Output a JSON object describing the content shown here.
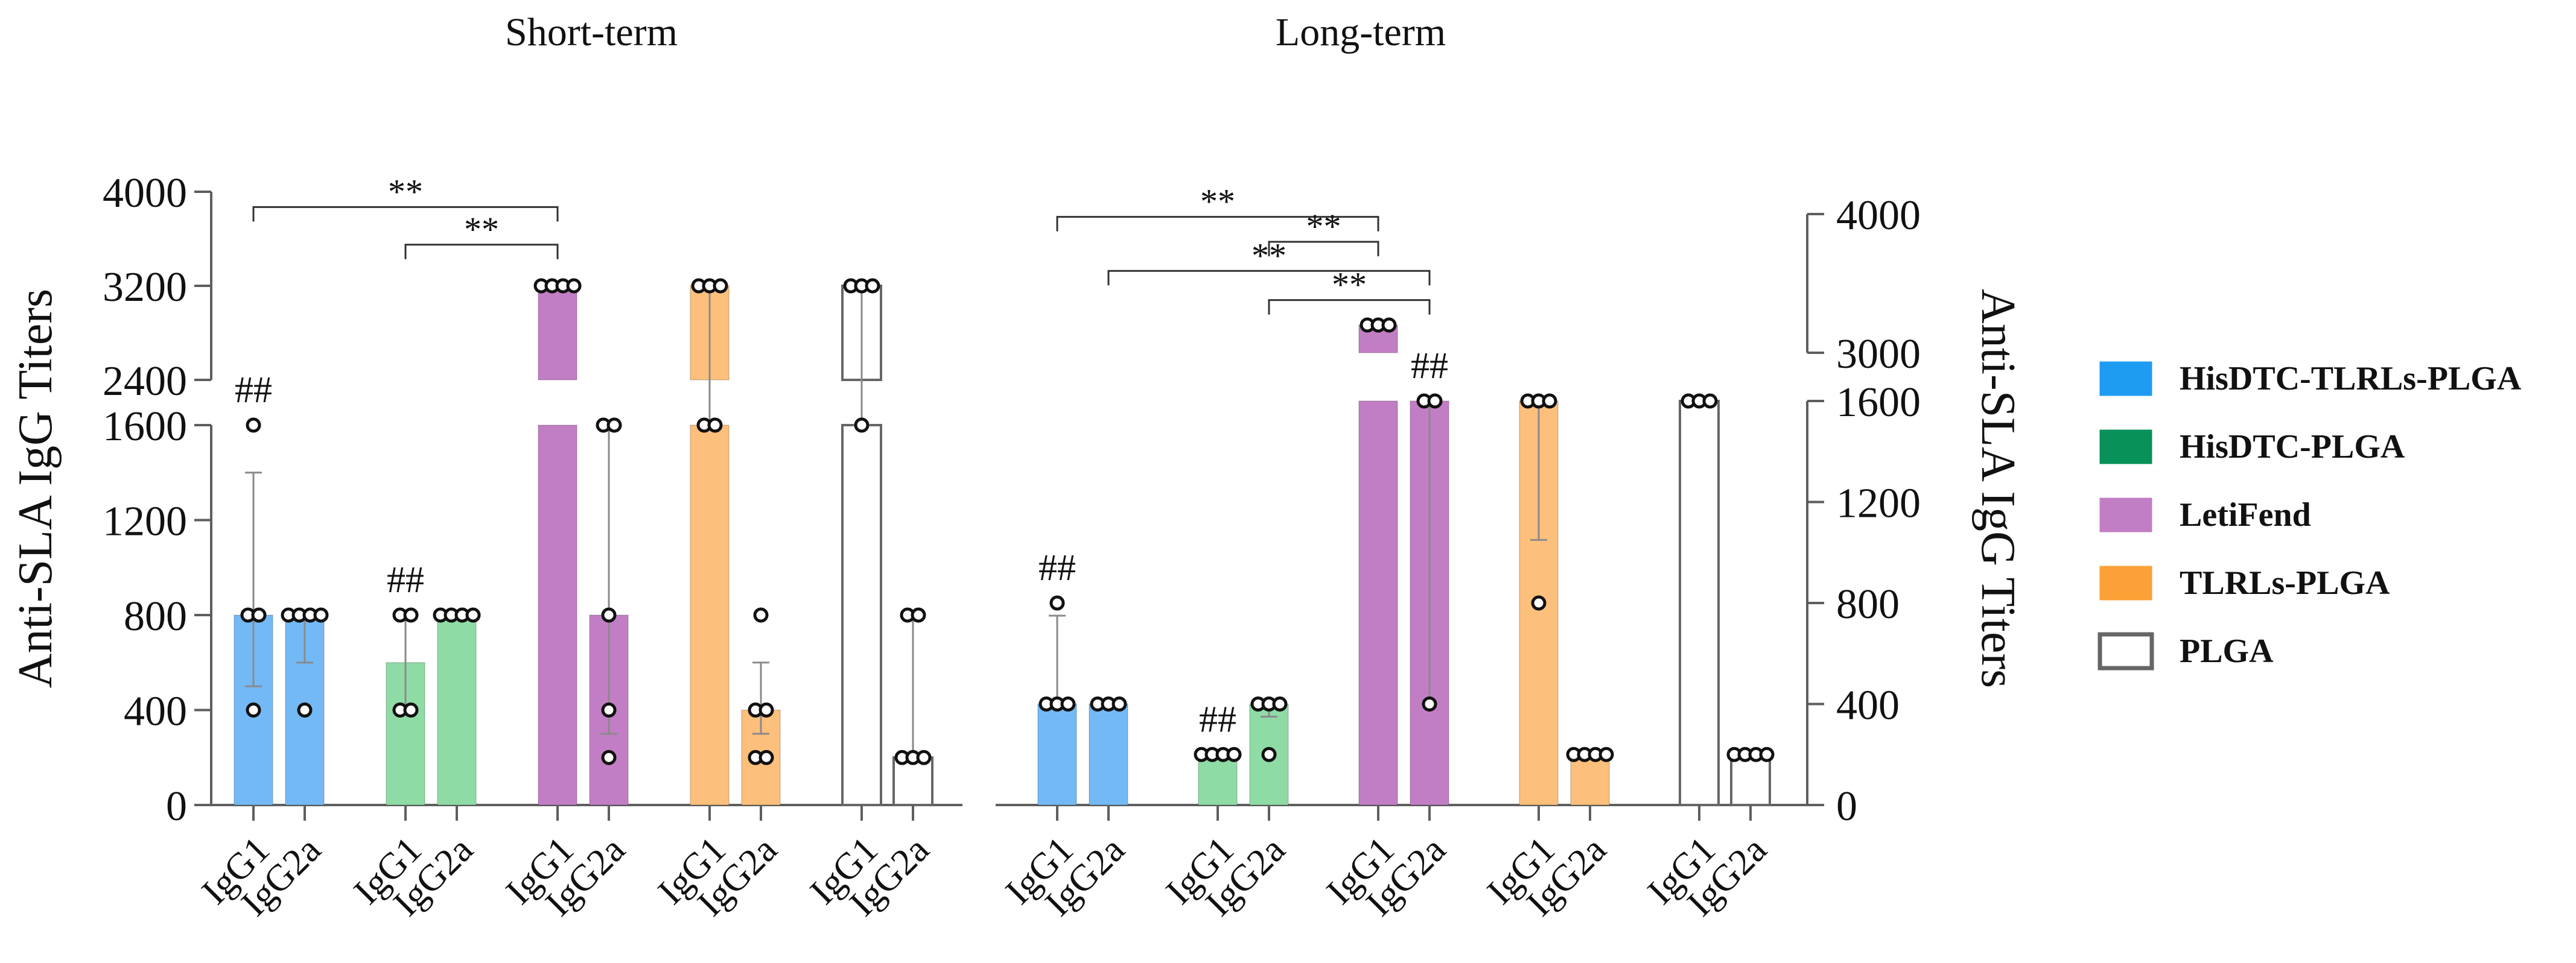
{
  "chart_data": {
    "type": "bar",
    "colors": {
      "HisDTC-TLRLs-PLGA": "#73b9f5",
      "HisDTC-PLGA": "#8fdba6",
      "LetiFend": "#c27ec4",
      "TLRLs-PLGA": "#fdbf7c",
      "PLGA": "#ffffff"
    },
    "legend": [
      {
        "label": "HisDTC-TLRLs-PLGA",
        "color": "#1e9cf2",
        "outline": false
      },
      {
        "label": "HisDTC-PLGA",
        "color": "#09915a",
        "outline": false
      },
      {
        "label": "LetiFend",
        "color": "#c27ec4",
        "outline": false
      },
      {
        "label": "TLRLs-PLGA",
        "color": "#fba137",
        "outline": false
      },
      {
        "label": "PLGA",
        "color": "#ffffff",
        "outline": true
      }
    ],
    "panels": [
      {
        "title": "Short-term",
        "ylabel": "Anti-SLA IgG Titers",
        "yaxis_side": "left",
        "yaxis_lower": {
          "range": [
            0,
            1600
          ],
          "ticks": [
            "0",
            "400",
            "800",
            "1200",
            "1600"
          ]
        },
        "yaxis_upper": {
          "range": [
            2400,
            4000
          ],
          "ticks": [
            "2400",
            "3200",
            "4000"
          ]
        },
        "bars": [
          {
            "group": "HisDTC-TLRLs-PLGA",
            "category": "IgG1",
            "value": 800,
            "err_low": 500,
            "err_high": 1400,
            "points": [
              400,
              800,
              800,
              1600
            ],
            "annotation": "##"
          },
          {
            "group": "HisDTC-TLRLs-PLGA",
            "category": "IgG2a",
            "value": 800,
            "err_low": 600,
            "err_high": 800,
            "points": [
              400,
              800,
              800,
              800,
              800
            ],
            "annotation": ""
          },
          {
            "group": "HisDTC-PLGA",
            "category": "IgG1",
            "value": 600,
            "err_low": 400,
            "err_high": 800,
            "points": [
              400,
              400,
              800,
              800
            ],
            "annotation": "##"
          },
          {
            "group": "HisDTC-PLGA",
            "category": "IgG2a",
            "value": 800,
            "err_low": 800,
            "err_high": 800,
            "points": [
              800,
              800,
              800,
              800
            ],
            "annotation": ""
          },
          {
            "group": "LetiFend",
            "category": "IgG1",
            "value": 3200,
            "err_low": 3200,
            "err_high": 3200,
            "points": [
              3200,
              3200,
              3200,
              3200
            ],
            "annotation": ""
          },
          {
            "group": "LetiFend",
            "category": "IgG2a",
            "value": 800,
            "err_low": 300,
            "err_high": 1600,
            "points": [
              200,
              400,
              800,
              1600,
              1600
            ],
            "annotation": ""
          },
          {
            "group": "TLRLs-PLGA",
            "category": "IgG1",
            "value": 3200,
            "err_low": 1600,
            "err_high": 3200,
            "points": [
              1600,
              1600,
              3200,
              3200,
              3200
            ],
            "annotation": ""
          },
          {
            "group": "TLRLs-PLGA",
            "category": "IgG2a",
            "value": 400,
            "err_low": 300,
            "err_high": 600,
            "points": [
              200,
              200,
              400,
              400,
              800
            ],
            "annotation": ""
          },
          {
            "group": "PLGA",
            "category": "IgG1",
            "value": 3200,
            "err_low": 1600,
            "err_high": 3200,
            "points": [
              1600,
              3200,
              3200,
              3200
            ],
            "annotation": ""
          },
          {
            "group": "PLGA",
            "category": "IgG2a",
            "value": 200,
            "err_low": 200,
            "err_high": 800,
            "points": [
              200,
              200,
              200,
              800,
              800
            ],
            "annotation": ""
          }
        ],
        "brackets": [
          {
            "from_bar": 0,
            "to_bar": 4,
            "label": "**",
            "value": 3870
          },
          {
            "from_bar": 2,
            "to_bar": 4,
            "label": "**",
            "value": 3550
          }
        ]
      },
      {
        "title": "Long-term",
        "ylabel": "Anti-SLA IgG Titers",
        "yaxis_side": "right",
        "yaxis_lower": {
          "range": [
            0,
            1600
          ],
          "ticks": [
            "0",
            "400",
            "800",
            "1200",
            "1600"
          ]
        },
        "yaxis_upper": {
          "range": [
            3000,
            4000
          ],
          "ticks": [
            "3000",
            "4000"
          ]
        },
        "bars": [
          {
            "group": "HisDTC-TLRLs-PLGA",
            "category": "IgG1",
            "value": 400,
            "err_low": 400,
            "err_high": 750,
            "points": [
              400,
              400,
              400,
              800
            ],
            "annotation": "##"
          },
          {
            "group": "HisDTC-TLRLs-PLGA",
            "category": "IgG2a",
            "value": 400,
            "err_low": 400,
            "err_high": 400,
            "points": [
              400,
              400,
              400
            ],
            "annotation": ""
          },
          {
            "group": "HisDTC-PLGA",
            "category": "IgG1",
            "value": 200,
            "err_low": 200,
            "err_high": 200,
            "points": [
              200,
              200,
              200,
              200
            ],
            "annotation": "##"
          },
          {
            "group": "HisDTC-PLGA",
            "category": "IgG2a",
            "value": 400,
            "err_low": 350,
            "err_high": 400,
            "points": [
              200,
              400,
              400,
              400
            ],
            "annotation": ""
          },
          {
            "group": "LetiFend",
            "category": "IgG1",
            "value": 3200,
            "err_low": 3200,
            "err_high": 3200,
            "points": [
              3200,
              3200,
              3200
            ],
            "annotation": ""
          },
          {
            "group": "LetiFend",
            "category": "IgG2a",
            "value": 1600,
            "err_low": 400,
            "err_high": 1600,
            "points": [
              400,
              1600,
              1600
            ],
            "annotation": "##"
          },
          {
            "group": "TLRLs-PLGA",
            "category": "IgG1",
            "value": 1600,
            "err_low": 1050,
            "err_high": 1600,
            "points": [
              800,
              1600,
              1600,
              1600
            ],
            "annotation": ""
          },
          {
            "group": "TLRLs-PLGA",
            "category": "IgG2a",
            "value": 200,
            "err_low": 200,
            "err_high": 200,
            "points": [
              200,
              200,
              200,
              200
            ],
            "annotation": ""
          },
          {
            "group": "PLGA",
            "category": "IgG1",
            "value": 1600,
            "err_low": 1600,
            "err_high": 1600,
            "points": [
              1600,
              1600,
              1600
            ],
            "annotation": ""
          },
          {
            "group": "PLGA",
            "category": "IgG2a",
            "value": 200,
            "err_low": 200,
            "err_high": 200,
            "points": [
              200,
              200,
              200,
              200
            ],
            "annotation": ""
          }
        ],
        "brackets": [
          {
            "from_bar": 0,
            "to_bar": 4,
            "label": "**",
            "value": 3980
          },
          {
            "from_bar": 3,
            "to_bar": 4,
            "label": "**",
            "value": 3800
          },
          {
            "from_bar": 1,
            "to_bar": 5,
            "label": "**",
            "value": 3590
          },
          {
            "from_bar": 3,
            "to_bar": 5,
            "label": "**",
            "value": 3380
          }
        ]
      }
    ]
  }
}
